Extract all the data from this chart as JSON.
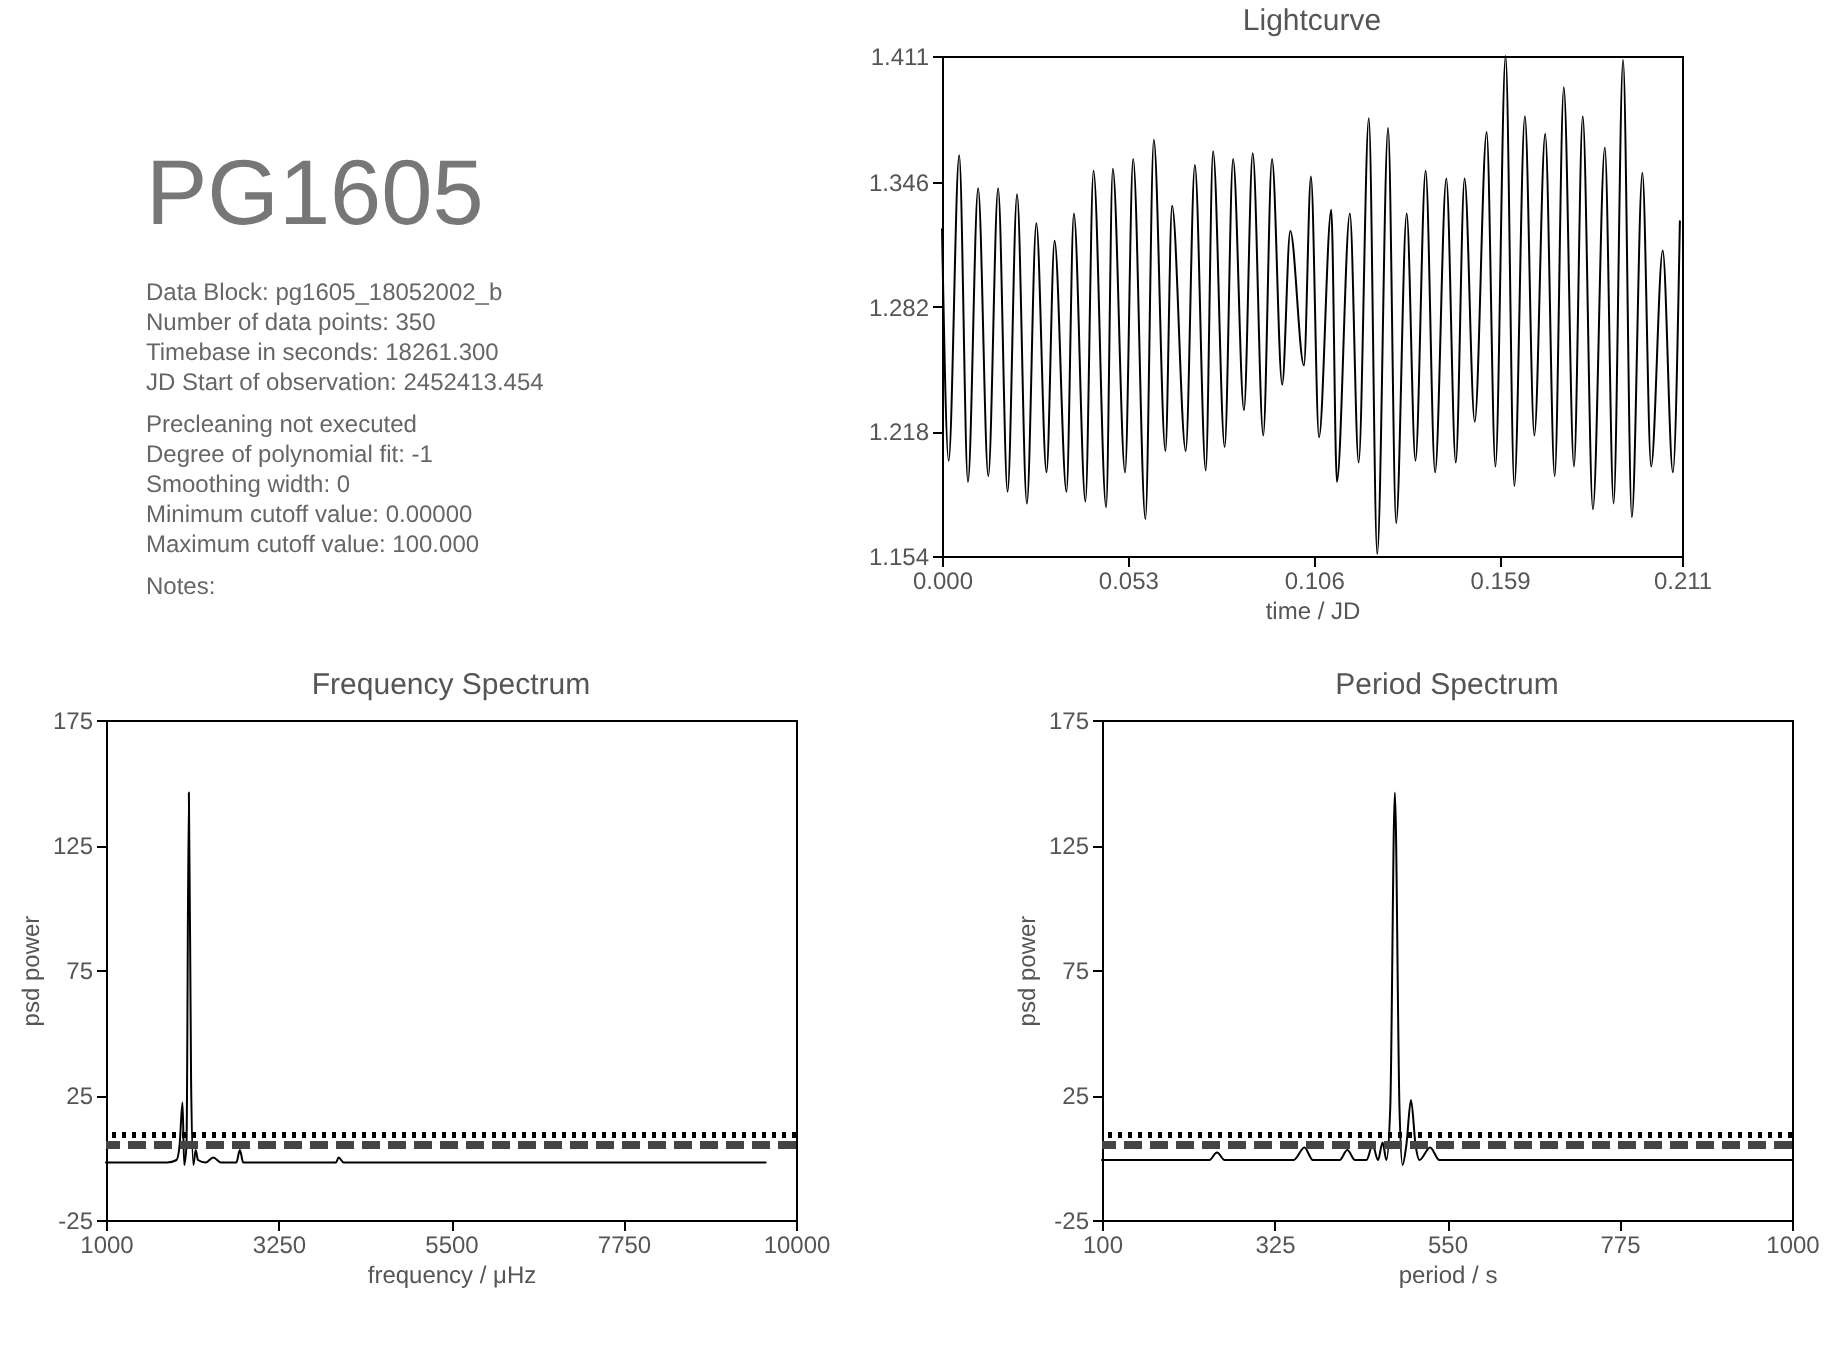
{
  "chart_data": [
    {
      "type": "other",
      "title": "PG1605",
      "annotations": [
        "Data Block:   pg1605_18052002_b",
        "Number of data points:   350",
        "Timebase in seconds:   18261.300",
        "JD Start of observation:   2452413.454",
        "Precleaning   not executed",
        "Degree of polynomial fit:   -1",
        "Smoothing width:   0",
        "Minimum cutoff value:   0.00000",
        "Maximum cutoff value:   100.000",
        "Notes:"
      ]
    },
    {
      "type": "line",
      "title": "Lightcurve",
      "xlabel": "time / JD",
      "xlim": [
        0,
        0.211
      ],
      "xticks": [
        {
          "value": 0,
          "label": "0.000"
        },
        0.053,
        0.106,
        0.159,
        0.211
      ],
      "ylim": [
        1.154,
        1.411
      ],
      "yticks": [
        1.154,
        1.218,
        1.282,
        1.346,
        1.411
      ],
      "x": [
        0,
        0.0019,
        0.0049,
        0.0074,
        0.0103,
        0.0132,
        0.016,
        0.0187,
        0.0214,
        0.0242,
        0.0269,
        0.0298,
        0.0321,
        0.0355,
        0.0376,
        0.0409,
        0.0432,
        0.0468,
        0.0487,
        0.0522,
        0.0545,
        0.058,
        0.0604,
        0.0637,
        0.0656,
        0.0695,
        0.0721,
        0.0752,
        0.0773,
        0.0806,
        0.083,
        0.0861,
        0.0886,
        0.0916,
        0.0941,
        0.097,
        0.0993,
        0.1032,
        0.1052,
        0.1075,
        0.111,
        0.1126,
        0.1163,
        0.1188,
        0.1217,
        0.1241,
        0.1272,
        0.1295,
        0.1325,
        0.135,
        0.1379,
        0.1406,
        0.1438,
        0.1465,
        0.149,
        0.1519,
        0.1553,
        0.1578,
        0.1607,
        0.1632,
        0.1662,
        0.1689,
        0.172,
        0.1747,
        0.1773,
        0.1802,
        0.1827,
        0.1856,
        0.189,
        0.1915,
        0.1942,
        0.1967,
        0.1997,
        0.2022,
        0.2055,
        0.2084,
        0.2104
      ],
      "series": [
        {
          "color": "#000000",
          "values": [
            1.322,
            1.203,
            1.36,
            1.192,
            1.343,
            1.195,
            1.343,
            1.187,
            1.34,
            1.181,
            1.325,
            1.197,
            1.316,
            1.187,
            1.33,
            1.182,
            1.352,
            1.179,
            1.353,
            1.197,
            1.358,
            1.173,
            1.368,
            1.208,
            1.334,
            1.208,
            1.355,
            1.198,
            1.362,
            1.21,
            1.358,
            1.229,
            1.361,
            1.216,
            1.358,
            1.242,
            1.321,
            1.252,
            1.349,
            1.215,
            1.332,
            1.192,
            1.33,
            1.202,
            1.379,
            1.155,
            1.374,
            1.171,
            1.33,
            1.203,
            1.352,
            1.197,
            1.348,
            1.202,
            1.348,
            1.223,
            1.372,
            1.2,
            1.411,
            1.19,
            1.38,
            1.216,
            1.371,
            1.195,
            1.395,
            1.2,
            1.38,
            1.178,
            1.364,
            1.181,
            1.409,
            1.174,
            1.351,
            1.2,
            1.311,
            1.197,
            1.326
          ]
        }
      ]
    },
    {
      "type": "line",
      "title": "Frequency Spectrum",
      "xlabel": "frequency / μHz",
      "ylabel": "psd power",
      "xlim": [
        1000,
        10000
      ],
      "xticks": [
        1000,
        3250,
        5500,
        7750,
        10000
      ],
      "ylim": [
        -25,
        175
      ],
      "yticks": [
        -25,
        25,
        75,
        125,
        175
      ],
      "x": [
        1000,
        1800,
        1920,
        1960,
        1998,
        2020,
        2050,
        2081,
        2110,
        2140,
        2170,
        2200,
        2300,
        2400,
        2500,
        2700,
        2746,
        2790,
        4000,
        4034,
        4100,
        9604
      ],
      "series": [
        {
          "color": "#000000",
          "values": [
            -2,
            -2,
            -1,
            5,
            22,
            -3,
            5,
            146,
            30,
            -3,
            3,
            -1,
            -2,
            0,
            -2,
            -2,
            3,
            -2,
            -2,
            0,
            -2,
            -2
          ]
        }
      ],
      "ref_lines": [
        {
          "axis": "y",
          "value": 9,
          "line_style": "dotted",
          "color": "#000000"
        },
        {
          "axis": "y",
          "value": 5,
          "line_style": "dashed",
          "color": "#444444"
        }
      ]
    },
    {
      "type": "line",
      "title": "Period Spectrum",
      "xlabel": "period / s",
      "ylabel": "psd power",
      "xlim": [
        100,
        1000
      ],
      "xticks": [
        100,
        325,
        550,
        775,
        1000
      ],
      "ylim": [
        -25,
        175
      ],
      "yticks": [
        -25,
        25,
        75,
        125,
        175
      ],
      "x": [
        100,
        240,
        250,
        260,
        350,
        364,
        375,
        410,
        420,
        430,
        445,
        453,
        460,
        466,
        471,
        476,
        482,
        488,
        492,
        497,
        503,
        509,
        514,
        528,
        540,
        1000
      ],
      "series": [
        {
          "color": "#000000",
          "values": [
            -1,
            -1,
            2,
            -1,
            -1,
            4,
            -1,
            -1,
            3,
            -1,
            -1,
            5,
            -1,
            6,
            -1,
            20,
            146,
            20,
            -3,
            5,
            23,
            5,
            -1,
            4,
            -1,
            -1
          ]
        }
      ],
      "ref_lines": [
        {
          "axis": "y",
          "value": 9,
          "line_style": "dotted",
          "color": "#000000"
        },
        {
          "axis": "y",
          "value": 5,
          "line_style": "dashed",
          "color": "#444444"
        }
      ]
    }
  ]
}
